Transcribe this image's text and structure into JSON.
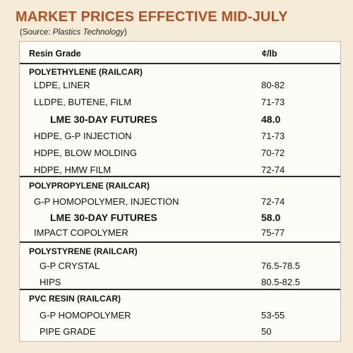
{
  "title": "MARKET PRICES EFFECTIVE MID-JULY",
  "source_prefix": "(Source: ",
  "source_name": "Plastics Technology",
  "source_suffix": ")",
  "header": {
    "grade": "Resin Grade",
    "unit": "¢/lb"
  },
  "sections": [
    {
      "title": "POLYETHYLENE (RAILCAR)",
      "rows": [
        {
          "name": "LDPE, LINER",
          "value": "80-82"
        },
        {
          "name": "LLDPE, BUTENE, FILM",
          "value": "71-73"
        },
        {
          "name": "LME 30-DAY FUTURES",
          "value": "48.0"
        },
        {
          "name": "HDPE, G-P INJECTION",
          "value": "71-73"
        },
        {
          "name": "HDPE, BLOW MOLDING",
          "value": "70-72"
        },
        {
          "name": "HDPE, HMW FILM",
          "value": "72-74"
        }
      ]
    },
    {
      "title": "POLYPROPYLENE (RAILCAR)",
      "rows": [
        {
          "name": "G-P HOMOPOLYMER, INJECTION",
          "value": "72-74"
        },
        {
          "name": "LME 30-DAY FUTURES",
          "value": "58.0"
        },
        {
          "name": "IMPACT COPOLYMER",
          "value": "75-77"
        }
      ]
    },
    {
      "title": "POLYSTYRENE (RAILCAR)",
      "rows": [
        {
          "name": "G-P CRYSTAL",
          "value": "76.5-78.5"
        },
        {
          "name": "HIPS",
          "value": "80.5-82.5"
        }
      ]
    },
    {
      "title": "PVC RESIN (RAILCAR)",
      "rows": [
        {
          "name": "G-P HOMOPOLYMER",
          "value": "53-55"
        },
        {
          "name": "PIPE GRADE",
          "value": "50"
        }
      ]
    }
  ]
}
